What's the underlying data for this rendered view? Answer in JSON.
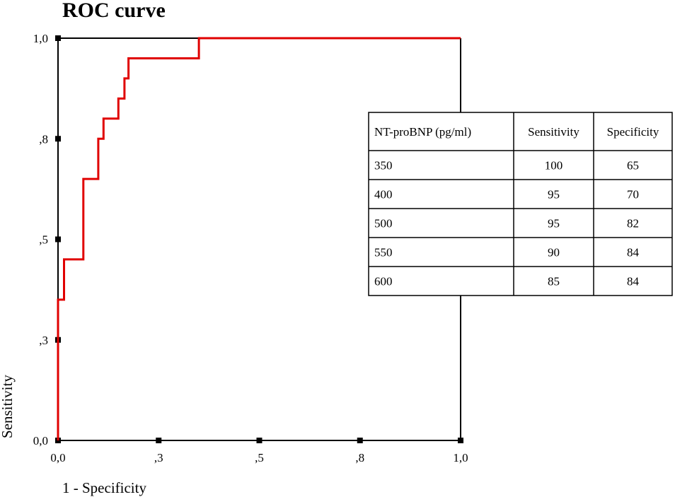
{
  "chart_data": {
    "type": "line",
    "title": "ROC curve",
    "xlabel": "1 - Specificity",
    "ylabel": "Sensitivity",
    "xlim": [
      0,
      1
    ],
    "ylim": [
      0,
      1
    ],
    "x_ticks": [
      {
        "value": 0.0,
        "label": "0,0"
      },
      {
        "value": 0.25,
        "label": ",3"
      },
      {
        "value": 0.5,
        "label": ",5"
      },
      {
        "value": 0.75,
        "label": ",8"
      },
      {
        "value": 1.0,
        "label": "1,0"
      }
    ],
    "y_ticks": [
      {
        "value": 0.0,
        "label": "0,0"
      },
      {
        "value": 0.25,
        "label": ",3"
      },
      {
        "value": 0.5,
        "label": ",5"
      },
      {
        "value": 0.75,
        "label": ",8"
      },
      {
        "value": 1.0,
        "label": "1,0"
      }
    ],
    "grid": false,
    "series": [
      {
        "color": "#e00000",
        "step_points": [
          [
            0.0,
            0.0
          ],
          [
            0.0,
            0.34
          ],
          [
            0.0,
            0.35
          ],
          [
            0.015,
            0.35
          ],
          [
            0.015,
            0.45
          ],
          [
            0.063,
            0.45
          ],
          [
            0.063,
            0.65
          ],
          [
            0.1,
            0.65
          ],
          [
            0.1,
            0.75
          ],
          [
            0.113,
            0.75
          ],
          [
            0.113,
            0.8
          ],
          [
            0.15,
            0.8
          ],
          [
            0.15,
            0.85
          ],
          [
            0.165,
            0.85
          ],
          [
            0.165,
            0.9
          ],
          [
            0.175,
            0.9
          ],
          [
            0.175,
            0.95
          ],
          [
            0.35,
            0.95
          ],
          [
            0.35,
            1.0
          ],
          [
            1.0,
            1.0
          ]
        ]
      }
    ],
    "table": {
      "headers": [
        "NT-proBNP (pg/ml)",
        "Sensitivity",
        "Specificity"
      ],
      "rows": [
        [
          "350",
          "100",
          "65"
        ],
        [
          "400",
          "95",
          "70"
        ],
        [
          "500",
          "95",
          "82"
        ],
        [
          "550",
          "90",
          "84"
        ],
        [
          "600",
          "85",
          "84"
        ]
      ]
    }
  }
}
